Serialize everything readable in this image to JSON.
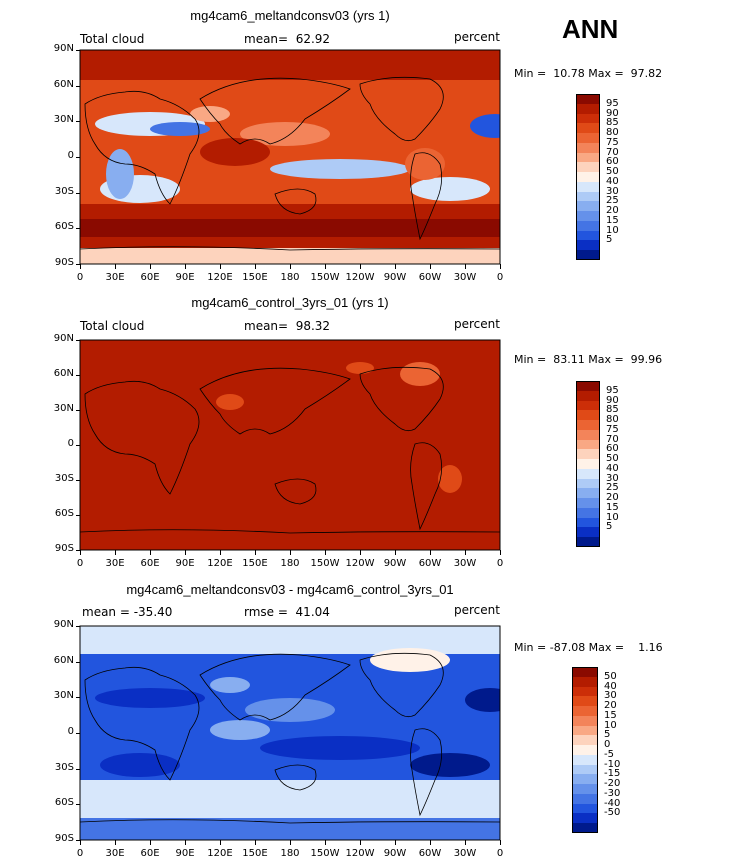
{
  "season": "ANN",
  "panels": [
    {
      "title": "mg4cam6_meltandconsv03 (yrs 1)",
      "left_label": "Total cloud",
      "center_label": "mean=  62.92",
      "right_label": "percent",
      "minmax": "Min =  10.78 Max =  97.82",
      "colorbar": {
        "labels": [
          "95",
          "90",
          "85",
          "80",
          "75",
          "70",
          "60",
          "50",
          "40",
          "30",
          "25",
          "20",
          "15",
          "10",
          "5"
        ],
        "colors": [
          "#8a0a00",
          "#b31c00",
          "#cc2e08",
          "#e04a17",
          "#eb6433",
          "#f3845a",
          "#f9a884",
          "#fdd3bd",
          "#fff2e8",
          "#d7e7fb",
          "#aecbf6",
          "#88aef0",
          "#6591ea",
          "#4474e4",
          "#2255de",
          "#0a2fc4",
          "#001a8c"
        ]
      },
      "xlabels": [
        "0",
        "30E",
        "60E",
        "90E",
        "120E",
        "150E",
        "180",
        "150W",
        "120W",
        "90W",
        "60W",
        "30W",
        "0"
      ],
      "ylabels": [
        "90N",
        "60N",
        "30N",
        "0",
        "30S",
        "60S",
        "90S"
      ]
    },
    {
      "title": "mg4cam6_control_3yrs_01 (yrs 1)",
      "left_label": "Total cloud",
      "center_label": "mean=  98.32",
      "right_label": "percent",
      "minmax": "Min =  83.11 Max =  99.96",
      "colorbar": {
        "labels": [
          "95",
          "90",
          "85",
          "80",
          "75",
          "70",
          "60",
          "50",
          "40",
          "30",
          "25",
          "20",
          "15",
          "10",
          "5"
        ],
        "colors": [
          "#8a0a00",
          "#b31c00",
          "#cc2e08",
          "#e04a17",
          "#eb6433",
          "#f3845a",
          "#f9a884",
          "#fdd3bd",
          "#fff2e8",
          "#d7e7fb",
          "#aecbf6",
          "#88aef0",
          "#6591ea",
          "#4474e4",
          "#2255de",
          "#0a2fc4",
          "#001a8c"
        ]
      },
      "xlabels": [
        "0",
        "30E",
        "60E",
        "90E",
        "120E",
        "150E",
        "180",
        "150W",
        "120W",
        "90W",
        "60W",
        "30W",
        "0"
      ],
      "ylabels": [
        "90N",
        "60N",
        "30N",
        "0",
        "30S",
        "60S",
        "90S"
      ]
    },
    {
      "title": "mg4cam6_meltandconsv03 - mg4cam6_control_3yrs_01",
      "left_label": "mean = -35.40",
      "center_label": "rmse =  41.04",
      "right_label": "percent",
      "minmax": "Min = -87.08 Max =    1.16",
      "colorbar": {
        "labels": [
          "50",
          "40",
          "30",
          "20",
          "15",
          "10",
          "5",
          "0",
          "-5",
          "-10",
          "-15",
          "-20",
          "-30",
          "-40",
          "-50"
        ],
        "colors": [
          "#8a0a00",
          "#b31c00",
          "#cc2e08",
          "#e04a17",
          "#eb6433",
          "#f3845a",
          "#f9a884",
          "#fdd3bd",
          "#fff2e8",
          "#d7e7fb",
          "#aecbf6",
          "#88aef0",
          "#6591ea",
          "#4474e4",
          "#2255de",
          "#0a2fc4",
          "#001a8c"
        ]
      },
      "xlabels": [
        "0",
        "30E",
        "60E",
        "90E",
        "120E",
        "150E",
        "180",
        "150W",
        "120W",
        "90W",
        "60W",
        "30W",
        "0"
      ],
      "ylabels": [
        "90N",
        "60N",
        "30N",
        "0",
        "30S",
        "60S",
        "90S"
      ]
    }
  ]
}
